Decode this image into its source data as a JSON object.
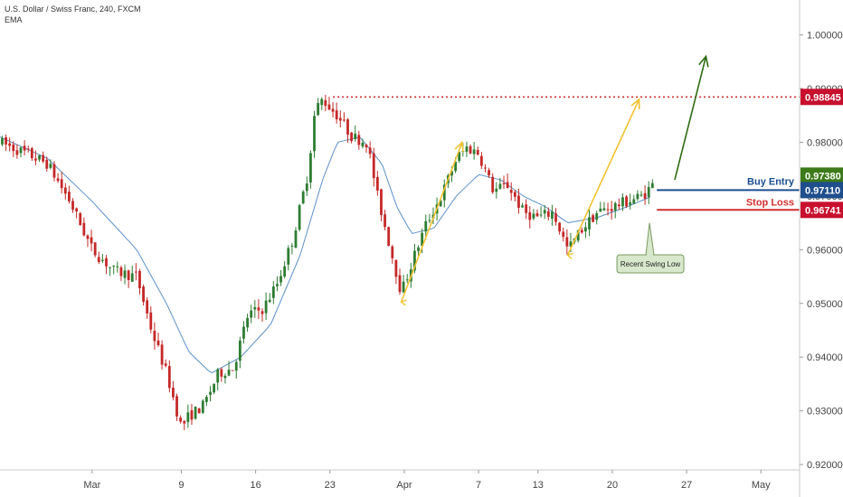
{
  "header": {
    "title": "U.S. Dollar / Swiss Franc, 240, FXCM",
    "indicator": "EMA"
  },
  "colors": {
    "up": "#2e7d32",
    "down": "#c62828",
    "ema": "#5b8fc9",
    "resistance": "#d32f2f",
    "yellow_arrow": "#f2c230",
    "green_arrow": "#2e6b12",
    "buy_line": "#1c4f8f",
    "stop_line": "#d32f2f",
    "tag_resistance": "#c8102e",
    "tag_price": "#3d7a1a",
    "tag_buy": "#1f4e8c",
    "tag_stop": "#c8102e",
    "swing_fill": "#d8e8cc",
    "swing_border": "#7a9a62"
  },
  "chart_data": {
    "type": "candlestick",
    "ylim": [
      0.919,
      1.0065
    ],
    "x_ticks": [
      {
        "label": "Mar",
        "x": 1
      },
      {
        "label": "9",
        "x": 7
      },
      {
        "label": "16",
        "x": 12
      },
      {
        "label": "23",
        "x": 17
      },
      {
        "label": "Apr",
        "x": 22
      },
      {
        "label": "7",
        "x": 27
      },
      {
        "label": "13",
        "x": 31
      },
      {
        "label": "20",
        "x": 36
      },
      {
        "label": "27",
        "x": 41
      },
      {
        "label": "May",
        "x": 46
      }
    ],
    "x_domain": [
      -5.2,
      48.6
    ],
    "y_ticks": [
      "1.00000",
      "0.99000",
      "0.98000",
      "0.97000",
      "0.96000",
      "0.95000",
      "0.94000",
      "0.93000",
      "0.92000"
    ],
    "y_tick_values": [
      1.0,
      0.99,
      0.98,
      0.97,
      0.96,
      0.95,
      0.94,
      0.93,
      0.92
    ],
    "price_path": [
      [
        -5.2,
        0.98
      ],
      [
        -3.5,
        0.978
      ],
      [
        -2.0,
        0.976
      ],
      [
        -0.5,
        0.969
      ],
      [
        1.0,
        0.96
      ],
      [
        2.5,
        0.956
      ],
      [
        4.0,
        0.955
      ],
      [
        5.0,
        0.945
      ],
      [
        6.0,
        0.937
      ],
      [
        7.0,
        0.927
      ],
      [
        7.5,
        0.929
      ],
      [
        8.5,
        0.931
      ],
      [
        9.5,
        0.937
      ],
      [
        10.5,
        0.938
      ],
      [
        11.5,
        0.948
      ],
      [
        12.5,
        0.949
      ],
      [
        13.5,
        0.954
      ],
      [
        14.5,
        0.962
      ],
      [
        15.5,
        0.974
      ],
      [
        16.0,
        0.986
      ],
      [
        16.5,
        0.988
      ],
      [
        17.5,
        0.985
      ],
      [
        18.5,
        0.981
      ],
      [
        19.5,
        0.98
      ],
      [
        20.2,
        0.97
      ],
      [
        21.0,
        0.961
      ],
      [
        21.8,
        0.952
      ],
      [
        22.7,
        0.959
      ],
      [
        23.5,
        0.965
      ],
      [
        24.5,
        0.97
      ],
      [
        25.5,
        0.977
      ],
      [
        26.2,
        0.979
      ],
      [
        27.0,
        0.978
      ],
      [
        28.0,
        0.971
      ],
      [
        29.0,
        0.972
      ],
      [
        30.0,
        0.967
      ],
      [
        31.0,
        0.966
      ],
      [
        32.0,
        0.967
      ],
      [
        33.0,
        0.96
      ],
      [
        34.0,
        0.964
      ],
      [
        35.0,
        0.967
      ],
      [
        36.0,
        0.968
      ],
      [
        37.0,
        0.969
      ],
      [
        38.0,
        0.97
      ],
      [
        38.7,
        0.972
      ]
    ],
    "ema_path": [
      [
        -5.2,
        0.981
      ],
      [
        -2.0,
        0.977
      ],
      [
        1.0,
        0.969
      ],
      [
        4.0,
        0.96
      ],
      [
        6.0,
        0.95
      ],
      [
        7.5,
        0.941
      ],
      [
        9.0,
        0.937
      ],
      [
        11.0,
        0.94
      ],
      [
        13.0,
        0.946
      ],
      [
        15.0,
        0.959
      ],
      [
        16.5,
        0.973
      ],
      [
        17.5,
        0.98
      ],
      [
        19.0,
        0.981
      ],
      [
        20.5,
        0.976
      ],
      [
        21.5,
        0.968
      ],
      [
        22.5,
        0.963
      ],
      [
        24.0,
        0.964
      ],
      [
        25.5,
        0.97
      ],
      [
        27.0,
        0.974
      ],
      [
        28.5,
        0.973
      ],
      [
        30.0,
        0.97
      ],
      [
        31.5,
        0.968
      ],
      [
        33.0,
        0.965
      ],
      [
        35.0,
        0.966
      ],
      [
        37.0,
        0.968
      ],
      [
        38.7,
        0.97
      ]
    ],
    "resistance_level": 0.98845,
    "resistance_range_x": [
      17.2,
      48.6
    ],
    "yellow_arrows": [
      {
        "from": [
          21.8,
          0.9503
        ],
        "to": [
          25.9,
          0.98
        ]
      },
      {
        "from": [
          33.0,
          0.959
        ],
        "to": [
          37.8,
          0.988
        ]
      }
    ],
    "green_arrow": {
      "from": [
        40.2,
        0.973
      ],
      "to": [
        42.3,
        0.996
      ]
    },
    "buy_level": 0.9711,
    "stop_level": 0.96741,
    "level_lines_x": [
      39.0,
      48.6
    ],
    "swing_low_marker": {
      "x": 38.5,
      "low": 0.966
    }
  },
  "annotations": {
    "buy_entry": "Buy Entry",
    "stop_loss": "Stop Loss",
    "recent_swing_low": "Recent Swing Low"
  },
  "price_tags": {
    "resistance": "0.98845",
    "last_price": "0.97380",
    "buy": "0.97110",
    "stop": "0.96741"
  }
}
